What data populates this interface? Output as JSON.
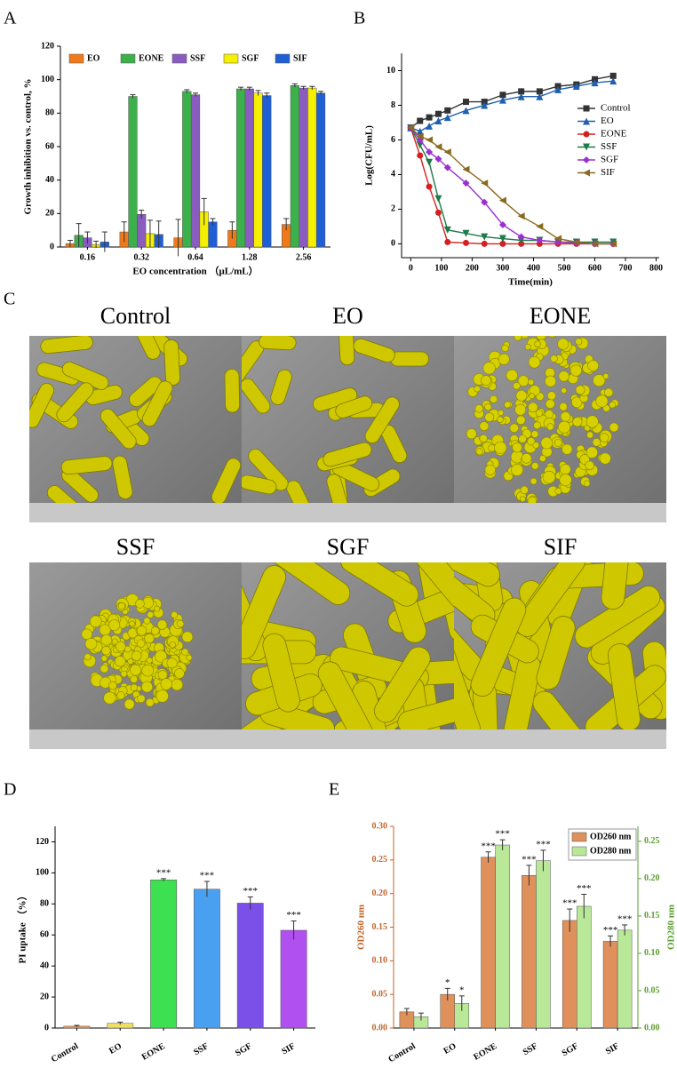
{
  "panel_labels": [
    "A",
    "B",
    "C",
    "D",
    "E"
  ],
  "sem_panel": {
    "captions": [
      "Control",
      "EO",
      "EONE",
      "SSF",
      "SGF",
      "SIF"
    ]
  },
  "chart_data": [
    {
      "type": "bar",
      "x_label": "EO concentration （μL/mL）",
      "y_label": "Growth inhibition vs. control, %",
      "categories": [
        "0.16",
        "0.32",
        "0.64",
        "1.28",
        "2.56"
      ],
      "ylim": [
        0,
        120
      ],
      "yticks": [
        0,
        20,
        40,
        60,
        80,
        100,
        120
      ],
      "legend": "top",
      "series": [
        {
          "name": "EO",
          "color": "#f07a1a",
          "values": [
            2,
            9,
            5.5,
            10,
            13.5
          ],
          "errors": [
            2,
            6,
            11,
            5,
            3.5
          ]
        },
        {
          "name": "EONE",
          "color": "#3cb04a",
          "values": [
            7,
            90,
            93,
            94.5,
            96.5
          ],
          "errors": [
            7,
            1,
            1,
            1,
            1
          ]
        },
        {
          "name": "SSF",
          "color": "#8a5cc0",
          "values": [
            5.5,
            19.5,
            91,
            94.5,
            95
          ],
          "errors": [
            3.5,
            2.5,
            1,
            1,
            1
          ]
        },
        {
          "name": "SGF",
          "color": "#f5f000",
          "values": [
            1.5,
            8,
            21,
            92,
            95
          ],
          "errors": [
            2,
            8,
            8,
            1.5,
            1
          ]
        },
        {
          "name": "SIF",
          "color": "#1f5fd6",
          "values": [
            3,
            7.5,
            15,
            90.5,
            92
          ],
          "errors": [
            6,
            8,
            2,
            1.5,
            1
          ]
        }
      ]
    },
    {
      "type": "line",
      "x_label": "Time(min)",
      "y_label": "Log(CFU/mL)",
      "x": [
        0,
        30,
        60,
        90,
        120,
        180,
        240,
        300,
        360,
        420,
        480,
        540,
        600,
        660
      ],
      "xlim": [
        -30,
        810
      ],
      "xticks": [
        0,
        100,
        200,
        300,
        400,
        500,
        600,
        700,
        800
      ],
      "ylim": [
        -0.8,
        11
      ],
      "yticks": [
        0,
        2,
        4,
        6,
        8,
        10
      ],
      "legend": "right",
      "series": [
        {
          "name": "Control",
          "color": "#333333",
          "marker": "square",
          "values": [
            6.7,
            7.1,
            7.3,
            7.5,
            7.7,
            8.2,
            8.2,
            8.6,
            8.8,
            8.8,
            9.1,
            9.2,
            9.5,
            9.7
          ]
        },
        {
          "name": "EO",
          "color": "#1f5fb0",
          "marker": "triangle",
          "values": [
            6.7,
            6.5,
            6.8,
            7.1,
            7.3,
            7.7,
            8.0,
            8.3,
            8.5,
            8.5,
            8.9,
            9.1,
            9.3,
            9.4
          ]
        },
        {
          "name": "EONE",
          "color": "#d42020",
          "marker": "circle",
          "values": [
            6.7,
            5.1,
            3.3,
            1.8,
            0.1,
            0.05,
            0,
            0,
            0,
            0,
            0,
            0,
            0,
            0
          ]
        },
        {
          "name": "SSF",
          "color": "#1e7a4a",
          "marker": "triangle-down",
          "values": [
            6.7,
            5.7,
            4.7,
            2.6,
            0.8,
            0.6,
            0.4,
            0.3,
            0.2,
            0.2,
            0.1,
            0.1,
            0.1,
            0.1
          ]
        },
        {
          "name": "SGF",
          "color": "#9b30d0",
          "marker": "diamond",
          "values": [
            6.7,
            6.0,
            5.3,
            4.9,
            4.4,
            3.5,
            2.4,
            1.1,
            0.4,
            0.2,
            0.1,
            0.05,
            0,
            0
          ]
        },
        {
          "name": "SIF",
          "color": "#8a6a1e",
          "marker": "triangle-left",
          "values": [
            6.7,
            6.2,
            6.0,
            5.6,
            5.3,
            4.3,
            3.5,
            2.5,
            1.6,
            1.0,
            0.3,
            0.1,
            0,
            0
          ]
        }
      ]
    },
    {
      "type": "bar",
      "y_label": "PI uptake （%）",
      "categories": [
        "Control",
        "EO",
        "EONE",
        "SSF",
        "SGF",
        "SIF"
      ],
      "ylim": [
        0,
        130
      ],
      "yticks": [
        0,
        20,
        40,
        60,
        80,
        100,
        120
      ],
      "values": [
        1.2,
        3,
        95.5,
        89.5,
        80.5,
        63
      ],
      "errors": [
        0.5,
        0.8,
        0.8,
        5,
        4,
        6
      ],
      "colors": [
        "#f0a060",
        "#f0e060",
        "#3ce050",
        "#4aa0f0",
        "#7a50e8",
        "#b050f0"
      ],
      "annotations": [
        null,
        null,
        "***",
        "***",
        "***",
        "***"
      ]
    },
    {
      "type": "bar",
      "y_label": "OD260 nm",
      "y2_label": "OD280 nm",
      "y_axis_color": "#c0652a",
      "y2_axis_color": "#5a9e2e",
      "categories": [
        "Control",
        "EO",
        "EONE",
        "SSF",
        "SGF",
        "SIF"
      ],
      "ylim": [
        0,
        0.3
      ],
      "yticks": [
        {
          "value": 0,
          "label": "0.00"
        },
        {
          "value": 0.05,
          "label": "0.05"
        },
        {
          "value": 0.1,
          "label": "0.10"
        },
        {
          "value": 0.15,
          "label": "0.15"
        },
        {
          "value": 0.2,
          "label": "0.20"
        },
        {
          "value": 0.25,
          "label": "0.25"
        },
        {
          "value": 0.3,
          "label": "0.30"
        }
      ],
      "y2lim": [
        0,
        0.27
      ],
      "y2ticks": [
        {
          "value": 0,
          "label": "0.00"
        },
        {
          "value": 0.05,
          "label": "0.05"
        },
        {
          "value": 0.1,
          "label": "0.10"
        },
        {
          "value": 0.15,
          "label": "0.15"
        },
        {
          "value": 0.2,
          "label": "0.20"
        },
        {
          "value": 0.25,
          "label": "0.25"
        }
      ],
      "legend": "top-right",
      "series": [
        {
          "name": "OD260 nm",
          "color": "#e0905a",
          "values": [
            0.024,
            0.05,
            0.254,
            0.227,
            0.16,
            0.129
          ],
          "errors": [
            0.005,
            0.009,
            0.008,
            0.015,
            0.017,
            0.008
          ],
          "annotations": [
            null,
            "*",
            "***",
            "***",
            "***",
            "***"
          ]
        },
        {
          "name": "OD280 nm",
          "color": "#b8e898",
          "axis": "y2",
          "values": [
            0.015,
            0.033,
            0.245,
            0.224,
            0.163,
            0.131
          ],
          "errors": [
            0.005,
            0.01,
            0.007,
            0.014,
            0.016,
            0.007
          ],
          "annotations": [
            null,
            "*",
            "***",
            "***",
            "***",
            "***"
          ]
        }
      ]
    }
  ]
}
